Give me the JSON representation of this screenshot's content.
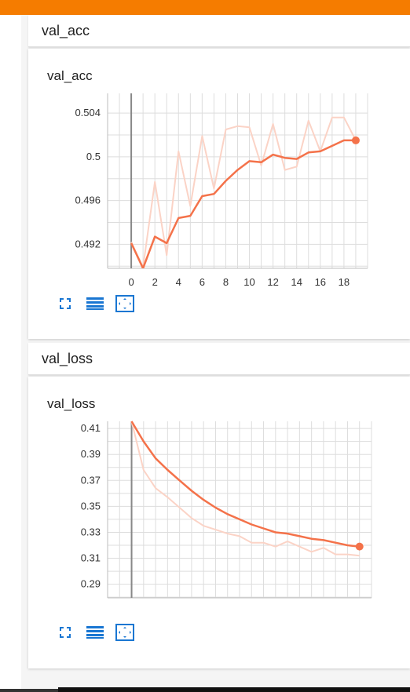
{
  "sections": [
    {
      "header": "val_acc",
      "title": "val_acc"
    },
    {
      "header": "val_loss",
      "title": "val_loss"
    }
  ],
  "toolbar_icons": [
    "fullscreen-icon",
    "lines-icon",
    "fit-domain-icon"
  ],
  "colors": {
    "accent": "#f57c00",
    "smoothed": "#f4724a",
    "raw": "#fbd3c6",
    "grid": "#dddddd"
  },
  "chart_data": [
    {
      "type": "line",
      "title": "val_acc",
      "x_ticks": [
        0,
        2,
        4,
        6,
        8,
        10,
        12,
        14,
        16,
        18
      ],
      "y_ticks": [
        0.492,
        0.496,
        0.5,
        0.504
      ],
      "y_tick_labels": [
        "0.492",
        "0.496",
        "0.5",
        "0.504"
      ],
      "xlim": [
        -2,
        20
      ],
      "ylim": [
        0.4898,
        0.5058
      ],
      "grid": true,
      "series": [
        {
          "role": "raw",
          "x": [
            0,
            1,
            2,
            3,
            4,
            5,
            6,
            7,
            8,
            9,
            10,
            11,
            12,
            13,
            14,
            15,
            16,
            17,
            18,
            19
          ],
          "y": [
            0.4922,
            0.4899,
            0.4977,
            0.491,
            0.5005,
            0.4955,
            0.5019,
            0.4971,
            0.5025,
            0.5028,
            0.5027,
            0.4992,
            0.503,
            0.4988,
            0.4991,
            0.5033,
            0.5005,
            0.5036,
            0.5036,
            0.5015
          ]
        },
        {
          "role": "smoothed",
          "x": [
            0,
            1,
            2,
            3,
            4,
            5,
            6,
            7,
            8,
            9,
            10,
            11,
            12,
            13,
            14,
            15,
            16,
            17,
            18,
            19
          ],
          "y": [
            0.4921,
            0.4898,
            0.4927,
            0.4921,
            0.4944,
            0.4946,
            0.4964,
            0.4966,
            0.4978,
            0.4988,
            0.4996,
            0.4995,
            0.5002,
            0.4999,
            0.4998,
            0.5004,
            0.5005,
            0.501,
            0.5015,
            0.5015
          ]
        }
      ]
    },
    {
      "type": "line",
      "title": "val_loss",
      "x_ticks": [
        0,
        2,
        4,
        6,
        8,
        10,
        12,
        14,
        16,
        18
      ],
      "y_ticks": [
        0.29,
        0.31,
        0.33,
        0.35,
        0.37,
        0.39,
        0.41
      ],
      "y_tick_labels": [
        "0.29",
        "0.31",
        "0.33",
        "0.35",
        "0.37",
        "0.39",
        "0.41"
      ],
      "xlim": [
        -2,
        20
      ],
      "ylim": [
        0.2795,
        0.4155
      ],
      "grid": true,
      "series": [
        {
          "role": "raw",
          "x": [
            0,
            1,
            2,
            3,
            4,
            5,
            6,
            7,
            8,
            9,
            10,
            11,
            12,
            13,
            14,
            15,
            16,
            17,
            18,
            19
          ],
          "y": [
            0.4155,
            0.378,
            0.364,
            0.357,
            0.349,
            0.341,
            0.335,
            0.332,
            0.329,
            0.327,
            0.322,
            0.322,
            0.319,
            0.323,
            0.319,
            0.315,
            0.318,
            0.313,
            0.313,
            0.312
          ]
        },
        {
          "role": "smoothed",
          "x": [
            0,
            1,
            2,
            3,
            4,
            5,
            6,
            7,
            8,
            9,
            10,
            11,
            12,
            13,
            14,
            15,
            16,
            17,
            18,
            19
          ],
          "y": [
            0.4155,
            0.4,
            0.387,
            0.378,
            0.37,
            0.362,
            0.355,
            0.349,
            0.344,
            0.34,
            0.336,
            0.333,
            0.33,
            0.329,
            0.327,
            0.325,
            0.324,
            0.322,
            0.32,
            0.319
          ]
        }
      ]
    }
  ]
}
